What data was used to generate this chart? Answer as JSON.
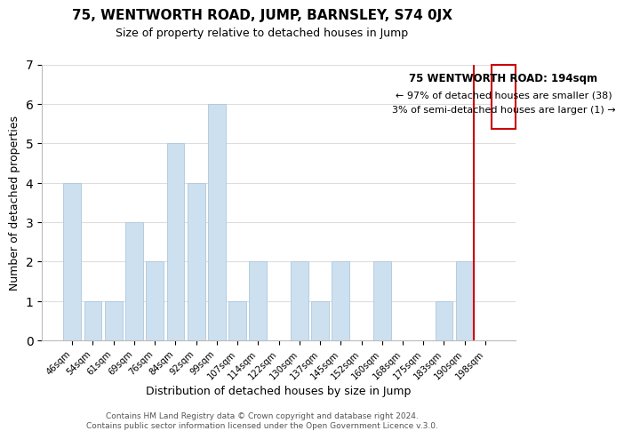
{
  "title": "75, WENTWORTH ROAD, JUMP, BARNSLEY, S74 0JX",
  "subtitle": "Size of property relative to detached houses in Jump",
  "xlabel": "Distribution of detached houses by size in Jump",
  "ylabel": "Number of detached properties",
  "footer_lines": [
    "Contains HM Land Registry data © Crown copyright and database right 2024.",
    "Contains public sector information licensed under the Open Government Licence v.3.0."
  ],
  "bins": [
    "46sqm",
    "54sqm",
    "61sqm",
    "69sqm",
    "76sqm",
    "84sqm",
    "92sqm",
    "99sqm",
    "107sqm",
    "114sqm",
    "122sqm",
    "130sqm",
    "137sqm",
    "145sqm",
    "152sqm",
    "160sqm",
    "168sqm",
    "175sqm",
    "183sqm",
    "190sqm",
    "198sqm"
  ],
  "counts": [
    4,
    1,
    1,
    3,
    2,
    5,
    4,
    6,
    1,
    2,
    0,
    2,
    1,
    2,
    0,
    2,
    0,
    0,
    1,
    2,
    0
  ],
  "bar_color": "#cce0f0",
  "bar_edge_color": "#aec8dc",
  "highlight_line_index": 19,
  "highlight_bar_edge_color": "#cc0000",
  "ylim": [
    0,
    7
  ],
  "yticks": [
    0,
    1,
    2,
    3,
    4,
    5,
    6,
    7
  ],
  "annotation_box": {
    "text_line1": "75 WENTWORTH ROAD: 194sqm",
    "text_line2": "← 97% of detached houses are smaller (38)",
    "text_line3": "3% of semi-detached houses are larger (1) →",
    "box_color": "#ffffff",
    "edge_color": "#cc0000",
    "text_color": "#000000"
  },
  "grid_color": "#dddddd",
  "background_color": "#ffffff"
}
